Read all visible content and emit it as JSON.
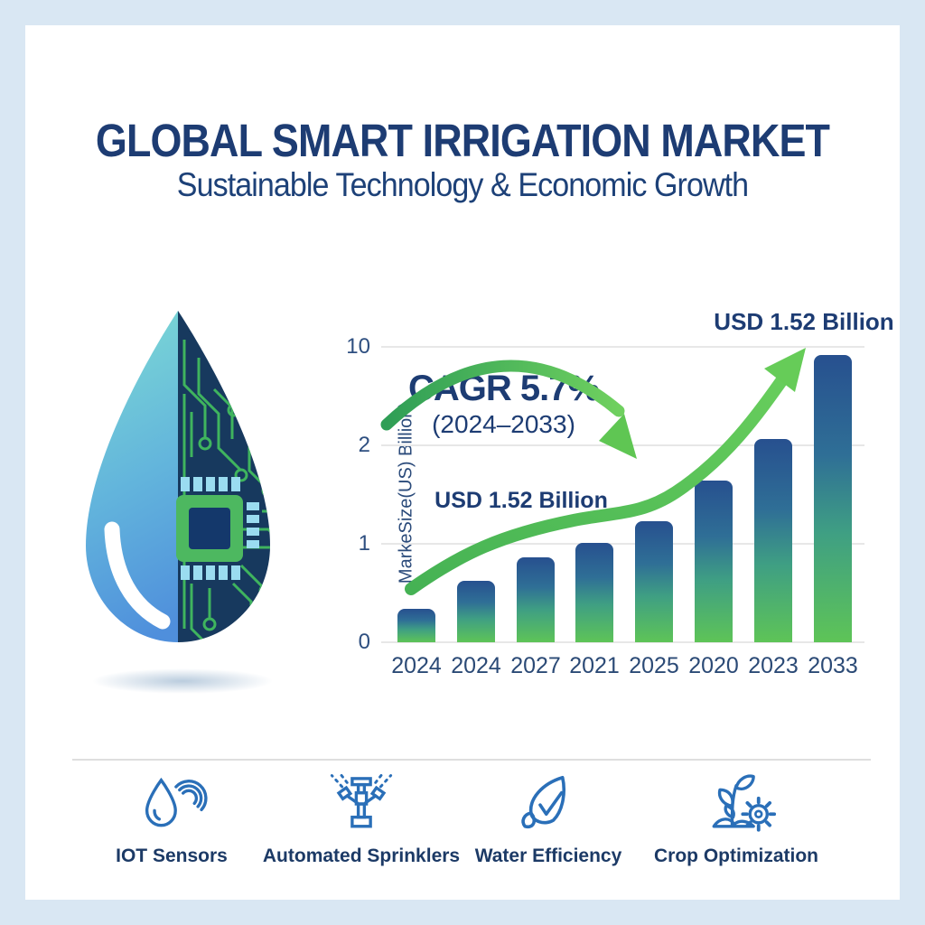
{
  "header": {
    "title": "GLOBAL SMART IRRIGATION MARKET",
    "subtitle": "Sustainable Technology & Economic Growth"
  },
  "chart_data": {
    "type": "bar",
    "categories": [
      "2024",
      "2024",
      "2027",
      "2021",
      "2025",
      "2020",
      "2023",
      "2033"
    ],
    "values": [
      0.34,
      0.62,
      0.86,
      1.01,
      1.23,
      1.64,
      2.06,
      2.92
    ],
    "value_note": "values in gridline units; y ticks 0,1,2,10 are equally spaced",
    "ylabel": "MarkeSize(US) Billion)",
    "xlabel": "",
    "title": "",
    "y_ticks": [
      {
        "label": "0",
        "unit": 0
      },
      {
        "label": "1",
        "unit": 1
      },
      {
        "label": "2",
        "unit": 2
      },
      {
        "label": "10",
        "unit": 3
      }
    ],
    "grid_on": true,
    "legend": null,
    "annotations": {
      "cagr_line1": "CAGR 5.7%",
      "cagr_line2": "(2024–2033)",
      "usd_mid": "USD 1.52 Billion",
      "usd_top": "USD 1.52 Billion"
    },
    "trend_arrows": [
      "arc-down-arrow over CAGR text",
      "s-curve rising arrow across bars"
    ]
  },
  "left_graphic": {
    "description": "water drop, left half water gradient, right half circuit board with chip",
    "icon": "water-drop-circuit-icon"
  },
  "footer": {
    "items": [
      {
        "icon": "iot-sensor-icon",
        "label": "IOT Sensors"
      },
      {
        "icon": "automated-sprinkler-icon",
        "label": "Automated Sprinklers"
      },
      {
        "icon": "water-efficiency-icon",
        "label": "Water Efficiency"
      },
      {
        "icon": "crop-optimization-icon",
        "label": "Crop Optimization"
      }
    ]
  },
  "colors": {
    "frame": "#d9e7f3",
    "card": "#ffffff",
    "navy_text": "#1d3c73",
    "tick_text": "#2e4f80",
    "gridline": "#e7e7e7",
    "bar_top": "#27508f",
    "bar_mid": "#3f9f83",
    "bar_bottom": "#5ec457",
    "arrow_green_dark": "#3aa355",
    "arrow_green_light": "#6fd05f",
    "icon_blue": "#2a6fb8",
    "divider": "#dedede"
  }
}
